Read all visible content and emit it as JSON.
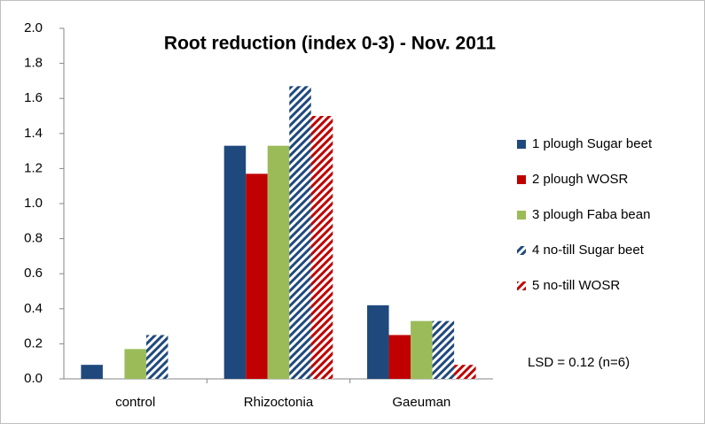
{
  "chart_data": {
    "type": "bar",
    "title": "Root reduction (index 0-3) - Nov. 2011",
    "categories": [
      "control",
      "Rhizoctonia",
      "Gaeuman"
    ],
    "series": [
      {
        "name": "1 plough Sugar beet",
        "color": "#1f497d",
        "hatch": false,
        "values": [
          0.08,
          1.33,
          0.42
        ]
      },
      {
        "name": "2 plough WOSR",
        "color": "#c00000",
        "hatch": false,
        "values": [
          0,
          1.17,
          0.25
        ]
      },
      {
        "name": "3 plough Faba bean",
        "color": "#9bbb59",
        "hatch": false,
        "values": [
          0.17,
          1.33,
          0.33
        ]
      },
      {
        "name": "4 no-till Sugar beet",
        "color": "#1f497d",
        "hatch": true,
        "values": [
          0.25,
          1.67,
          0.33
        ]
      },
      {
        "name": "5 no-till WOSR",
        "color": "#c00000",
        "hatch": true,
        "values": [
          0,
          1.5,
          0.08
        ]
      }
    ],
    "ylim": [
      0,
      2
    ],
    "yticks": [
      {
        "value": 0,
        "label": "0.0"
      },
      {
        "value": 0.2,
        "label": "0.2"
      },
      {
        "value": 0.4,
        "label": "0.4"
      },
      {
        "value": 0.6,
        "label": "0.6"
      },
      {
        "value": 0.8,
        "label": "0.8"
      },
      {
        "value": 1,
        "label": "1.0"
      },
      {
        "value": 1.2,
        "label": "1.2"
      },
      {
        "value": 1.4,
        "label": "1.4"
      },
      {
        "value": 1.6,
        "label": "1.6"
      },
      {
        "value": 1.8,
        "label": "1.8"
      },
      {
        "value": 2,
        "label": "2.0"
      }
    ],
    "legend": "right",
    "annotation": "LSD = 0.12 (n=6)"
  }
}
